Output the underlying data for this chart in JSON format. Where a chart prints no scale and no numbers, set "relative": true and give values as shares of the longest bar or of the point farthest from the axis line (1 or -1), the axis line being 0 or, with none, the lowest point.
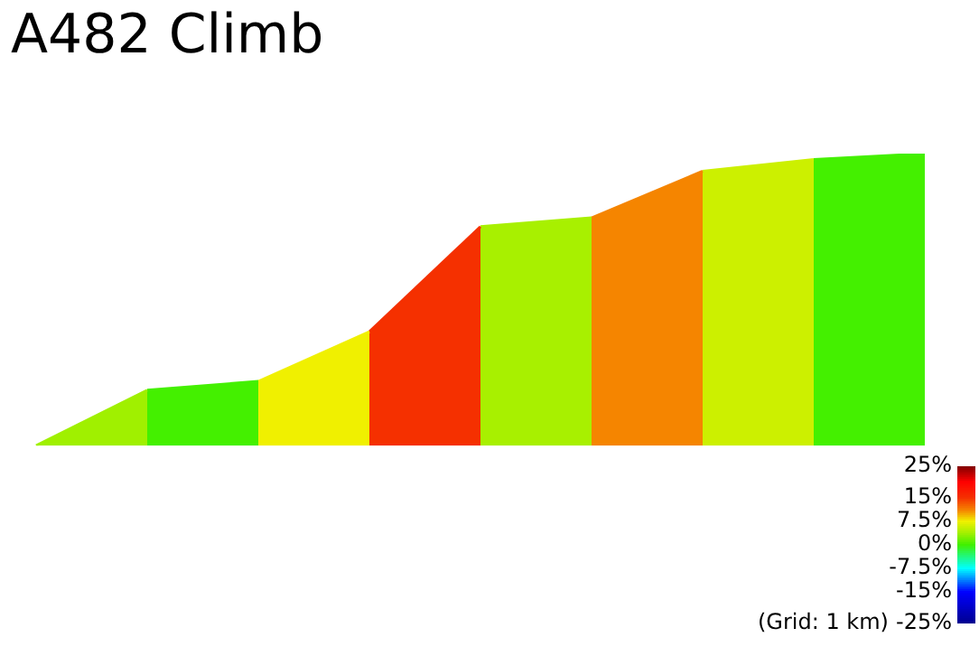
{
  "chart_data": {
    "type": "area",
    "title": "A482 Climb",
    "relative": true,
    "categories": [
      null,
      null,
      null,
      null,
      null,
      null,
      null,
      null,
      null
    ],
    "series": [
      {
        "color": "#a0f000",
        "values": [
          0,
          0.19,
          null,
          null,
          null,
          null,
          null,
          null,
          null
        ]
      },
      {
        "color": "#44f000",
        "values": [
          null,
          0.19,
          0.22,
          null,
          null,
          null,
          null,
          null,
          null
        ]
      },
      {
        "color": "#f0f000",
        "values": [
          null,
          null,
          0.22,
          0.39,
          null,
          null,
          null,
          null,
          null
        ]
      },
      {
        "color": "#f53000",
        "values": [
          null,
          null,
          null,
          0.39,
          0.75,
          null,
          null,
          null,
          null
        ]
      },
      {
        "color": "#a8f000",
        "values": [
          null,
          null,
          null,
          null,
          0.75,
          0.78,
          null,
          null,
          null
        ]
      },
      {
        "color": "#f58500",
        "values": [
          null,
          null,
          null,
          null,
          null,
          0.78,
          0.94,
          null,
          null
        ]
      },
      {
        "color": "#ccf000",
        "values": [
          null,
          null,
          null,
          null,
          null,
          null,
          0.94,
          0.98,
          null
        ]
      },
      {
        "color": "#44f000",
        "values": [
          null,
          null,
          null,
          null,
          null,
          null,
          null,
          0.98,
          1
        ]
      }
    ],
    "clim": [
      -25,
      25
    ],
    "cticks": [
      {
        "value": 25,
        "label": "25%"
      },
      {
        "value": 15,
        "label": "15%"
      },
      {
        "value": 7.5,
        "label": "7.5%"
      },
      {
        "value": 0,
        "label": "0%"
      },
      {
        "value": -7.5,
        "label": "-7.5%"
      },
      {
        "value": -15,
        "label": "-15%"
      },
      {
        "value": -25,
        "label": "-25%"
      }
    ],
    "annotations": [
      "(Grid: 1 km)"
    ],
    "grid": false,
    "legend": false
  }
}
